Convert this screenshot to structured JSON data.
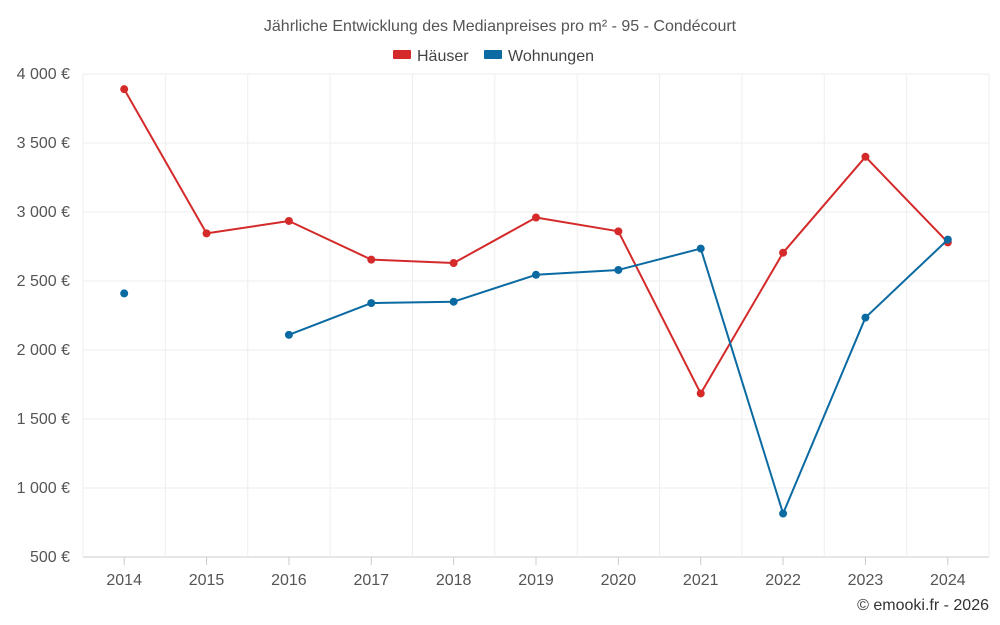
{
  "chart_data": {
    "type": "line",
    "title": "Jährliche Entwicklung des Medianpreises pro m² - 95 - Condécourt",
    "categories": [
      "2014",
      "2015",
      "2016",
      "2017",
      "2018",
      "2019",
      "2020",
      "2021",
      "2022",
      "2023",
      "2024"
    ],
    "series": [
      {
        "name": "Häuser",
        "color": "#d42a2a",
        "values": [
          3890,
          2845,
          2935,
          2655,
          2630,
          2960,
          2860,
          1685,
          2705,
          3400,
          2780
        ]
      },
      {
        "name": "Wohnungen",
        "color": "#0a6aa1",
        "values": [
          2410,
          null,
          2110,
          2340,
          2350,
          2545,
          2580,
          2735,
          815,
          2235,
          2800
        ]
      }
    ],
    "ylim": [
      500,
      4000
    ],
    "yticks": [
      500,
      1000,
      1500,
      2000,
      2500,
      3000,
      3500,
      4000
    ],
    "ytick_labels": [
      "500 €",
      "1 000 €",
      "1 500 €",
      "2 000 €",
      "2 500 €",
      "3 000 €",
      "3 500 €",
      "4 000 €"
    ],
    "xlabel": "",
    "ylabel": "",
    "legend_position": "top-center",
    "grid": true
  },
  "credit": "© emooki.fr - 2026"
}
